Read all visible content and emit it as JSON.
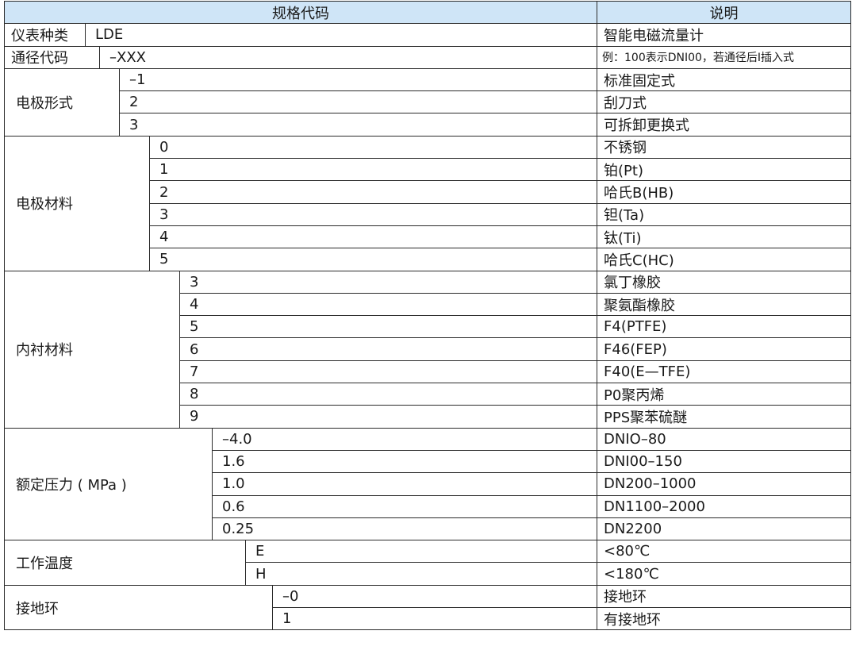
{
  "header": {
    "spec_code": "规格代码",
    "description": "说明"
  },
  "groups": [
    {
      "label": "仪表种类",
      "items": [
        {
          "code": "LDE",
          "desc": "智能电磁流量计"
        }
      ]
    },
    {
      "label": "通径代码",
      "items": [
        {
          "code": "–XXX",
          "desc": "例：100表示DNI00，若通径后I插入式"
        }
      ]
    },
    {
      "label": "电极形式",
      "items": [
        {
          "code": "–1",
          "desc": "标准固定式"
        },
        {
          "code": "2",
          "desc": "刮刀式"
        },
        {
          "code": "3",
          "desc": "可拆卸更换式"
        }
      ]
    },
    {
      "label": "电极材料",
      "items": [
        {
          "code": "0",
          "desc": "不锈钢"
        },
        {
          "code": "1",
          "desc": "铂(Pt)"
        },
        {
          "code": "2",
          "desc": "哈氏B(HB)"
        },
        {
          "code": "3",
          "desc": "钽(Ta)"
        },
        {
          "code": "4",
          "desc": "钛(Ti)"
        },
        {
          "code": "5",
          "desc": "哈氏C(HC)"
        }
      ]
    },
    {
      "label": "内衬材料",
      "items": [
        {
          "code": "3",
          "desc": "氯丁橡胶"
        },
        {
          "code": "4",
          "desc": "聚氨酯橡胶"
        },
        {
          "code": "5",
          "desc": "F4(PTFE)"
        },
        {
          "code": "6",
          "desc": "F46(FEP)"
        },
        {
          "code": "7",
          "desc": "F40(E—TFE)"
        },
        {
          "code": "8",
          "desc": "P0聚丙烯"
        },
        {
          "code": "9",
          "desc": "PPS聚苯硫醚"
        }
      ]
    },
    {
      "label": "额定压力 ( MPa )",
      "items": [
        {
          "code": "–4.0",
          "desc": "DNIO–80"
        },
        {
          "code": "1.6",
          "desc": "DNI00–150"
        },
        {
          "code": "1.0",
          "desc": "DN200–1000"
        },
        {
          "code": "0.6",
          "desc": "DN1100–2000"
        },
        {
          "code": "0.25",
          "desc": "DN2200"
        }
      ]
    },
    {
      "label": "工作温度",
      "items": [
        {
          "code": "E",
          "desc": "<80℃"
        },
        {
          "code": "H",
          "desc": "<180℃"
        }
      ]
    },
    {
      "label": "接地环",
      "items": [
        {
          "code": "–0",
          "desc": "接地环"
        },
        {
          "code": "1",
          "desc": "有接地环"
        }
      ]
    }
  ],
  "colors": {
    "header_bg": "#cfe5f7",
    "border": "#2b2b2b"
  }
}
